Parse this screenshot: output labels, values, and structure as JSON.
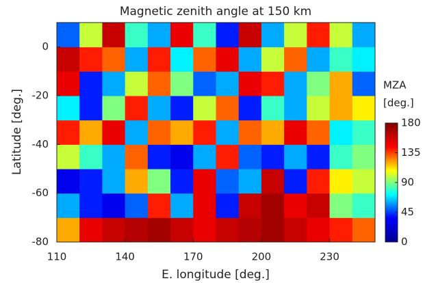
{
  "chart_data": {
    "type": "heatmap",
    "title": "Magnetic zenith angle at 150 km",
    "x_label": "E. longitude [deg.]",
    "y_label": "Latitude [deg.]",
    "x_edges": [
      110,
      120,
      130,
      140,
      150,
      160,
      170,
      180,
      190,
      200,
      210,
      220,
      230,
      240,
      250
    ],
    "y_edges": [
      -80,
      -70,
      -60,
      -50,
      -40,
      -30,
      -20,
      -10,
      0,
      10
    ],
    "values": [
      [
        120,
        150,
        160,
        165,
        170,
        160,
        150,
        160,
        165,
        170,
        160,
        150,
        140,
        130
      ],
      [
        60,
        40,
        30,
        50,
        140,
        60,
        150,
        40,
        160,
        170,
        150,
        160,
        90,
        80
      ],
      [
        30,
        40,
        60,
        120,
        90,
        40,
        150,
        50,
        60,
        160,
        40,
        140,
        110,
        100
      ],
      [
        100,
        80,
        60,
        130,
        40,
        30,
        60,
        140,
        50,
        40,
        60,
        40,
        80,
        90
      ],
      [
        140,
        120,
        150,
        60,
        130,
        120,
        140,
        60,
        130,
        120,
        150,
        130,
        70,
        80
      ],
      [
        70,
        40,
        90,
        140,
        60,
        40,
        100,
        130,
        40,
        80,
        60,
        100,
        120,
        110
      ],
      [
        150,
        40,
        60,
        100,
        130,
        90,
        50,
        60,
        150,
        140,
        60,
        90,
        120,
        50
      ],
      [
        160,
        140,
        130,
        60,
        140,
        70,
        130,
        150,
        60,
        100,
        130,
        60,
        80,
        70
      ],
      [
        50,
        100,
        160,
        80,
        60,
        150,
        80,
        40,
        160,
        60,
        100,
        140,
        100,
        60
      ]
    ],
    "xlim": [
      110,
      250
    ],
    "ylim": [
      -80,
      10
    ],
    "xticks": [
      110,
      140,
      170,
      200,
      230
    ],
    "yticks": [
      -80,
      -60,
      -40,
      -20,
      0
    ],
    "colorbar_label": [
      "MZA",
      "[deg.]"
    ],
    "clim": [
      0,
      180
    ],
    "cticks": [
      0,
      45,
      90,
      135,
      180
    ],
    "colormap": [
      "#00008f",
      "#0000ff",
      "#00ffff",
      "#ffff00",
      "#ff0000",
      "#800000"
    ]
  }
}
